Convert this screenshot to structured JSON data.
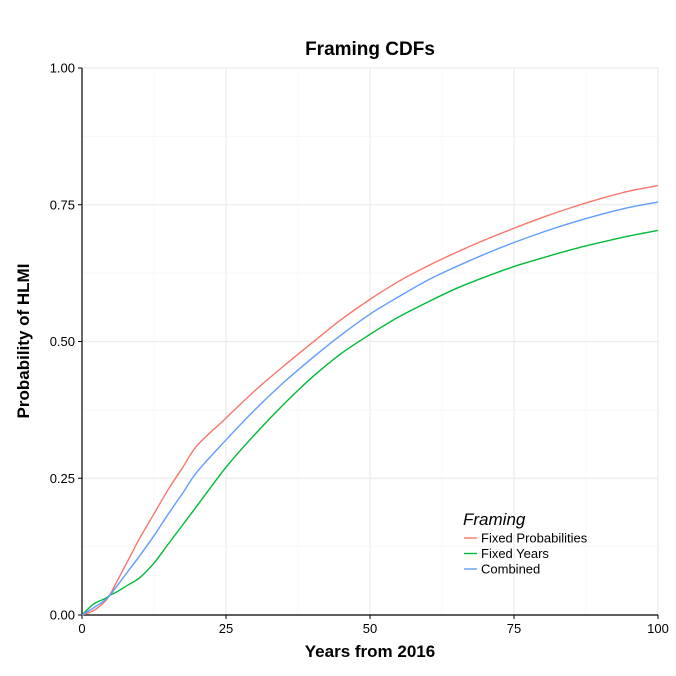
{
  "chart_data": {
    "type": "line",
    "title": "Framing CDFs",
    "xlabel": "Years from 2016",
    "ylabel": "Probability of HLMI",
    "xlim": [
      0,
      100
    ],
    "ylim": [
      0,
      1
    ],
    "x_ticks": [
      0,
      25,
      50,
      75,
      100
    ],
    "x_tick_labels": [
      "0",
      "25",
      "50",
      "75",
      "100"
    ],
    "y_ticks": [
      0,
      0.25,
      0.5,
      0.75,
      1
    ],
    "y_tick_labels": [
      "0.00",
      "0.25",
      "0.50",
      "0.75",
      "1.00"
    ],
    "grid": true,
    "legend": {
      "title": "Framing",
      "placement": "bottom-right"
    },
    "x": [
      0,
      2,
      4,
      5,
      6,
      8,
      10,
      12.5,
      15,
      17.5,
      20,
      25,
      30,
      35,
      40,
      45,
      50,
      55,
      60,
      65,
      70,
      75,
      80,
      85,
      90,
      95,
      100
    ],
    "series": [
      {
        "name": "Fixed Probabilities",
        "color": "#F8766D",
        "values": [
          0.0,
          0.008,
          0.025,
          0.04,
          0.06,
          0.1,
          0.14,
          0.185,
          0.23,
          0.27,
          0.31,
          0.36,
          0.41,
          0.455,
          0.498,
          0.54,
          0.577,
          0.61,
          0.638,
          0.663,
          0.686,
          0.707,
          0.727,
          0.745,
          0.761,
          0.775,
          0.785
        ]
      },
      {
        "name": "Fixed Years",
        "color": "#00BA38",
        "values": [
          0.0,
          0.02,
          0.03,
          0.037,
          0.042,
          0.055,
          0.068,
          0.095,
          0.13,
          0.165,
          0.2,
          0.27,
          0.33,
          0.385,
          0.435,
          0.478,
          0.513,
          0.545,
          0.572,
          0.597,
          0.618,
          0.637,
          0.653,
          0.668,
          0.681,
          0.693,
          0.703
        ]
      },
      {
        "name": "Combined",
        "color": "#619CFF",
        "values": [
          0.0,
          0.013,
          0.027,
          0.038,
          0.052,
          0.08,
          0.108,
          0.145,
          0.185,
          0.223,
          0.262,
          0.32,
          0.375,
          0.425,
          0.47,
          0.512,
          0.55,
          0.582,
          0.612,
          0.637,
          0.66,
          0.681,
          0.7,
          0.717,
          0.732,
          0.745,
          0.755
        ]
      }
    ]
  }
}
